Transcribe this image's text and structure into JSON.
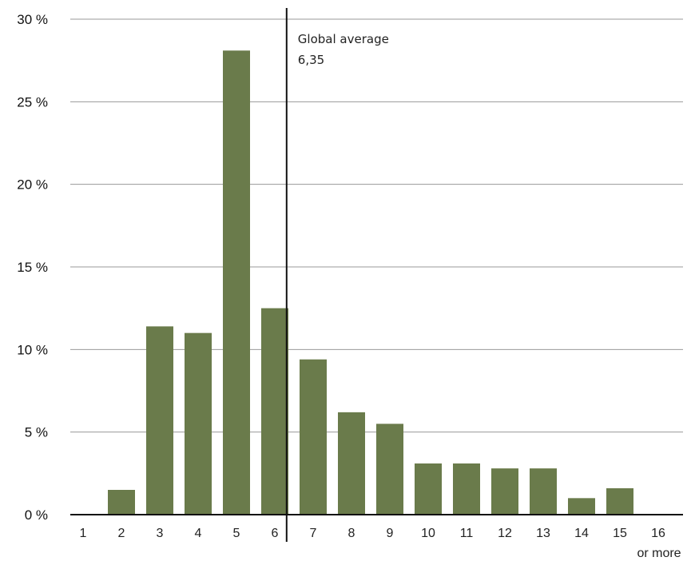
{
  "chart_data": {
    "type": "bar",
    "categories": [
      "1",
      "2",
      "3",
      "4",
      "5",
      "6",
      "7",
      "8",
      "9",
      "10",
      "11",
      "12",
      "13",
      "14",
      "15",
      "16"
    ],
    "last_category_suffix": "or more",
    "values": [
      0,
      1.5,
      11.4,
      11.0,
      28.1,
      12.5,
      9.4,
      6.2,
      5.5,
      3.1,
      3.1,
      2.8,
      2.8,
      1.0,
      1.6,
      0
    ],
    "ylim": [
      0,
      30
    ],
    "yticks": [
      0,
      5,
      10,
      15,
      20,
      25,
      30
    ],
    "ytick_labels": [
      "0 %",
      "5 %",
      "10 %",
      "15 %",
      "20 %",
      "25 %",
      "30 %"
    ],
    "grid": true,
    "bar_color": "#6a7b4b",
    "reference_line": {
      "value": 6.35,
      "label": "Global average",
      "value_label": "6,35"
    },
    "title": "",
    "xlabel": "",
    "ylabel": ""
  }
}
